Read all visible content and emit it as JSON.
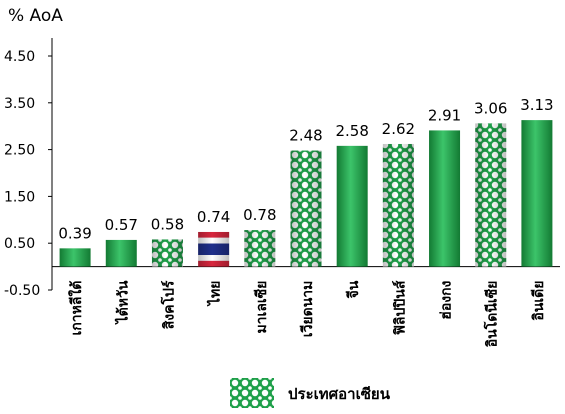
{
  "chart_data": {
    "type": "bar",
    "unit_label": "% AoA",
    "categories": [
      "เกาหลีใต้",
      "ไต้หวัน",
      "สิงคโปร์",
      "ไทย",
      "มาเลเซีย",
      "เวียดนาม",
      "จีน",
      "ฟิลิปปินส์",
      "ฮ่องกง",
      "อินโดนีเซีย",
      "อินเดีย"
    ],
    "values": [
      0.39,
      0.57,
      0.58,
      0.74,
      0.78,
      2.48,
      2.58,
      2.62,
      2.91,
      3.06,
      3.13
    ],
    "value_labels": [
      "0.39",
      "0.57",
      "0.58",
      "0.74",
      "0.78",
      "2.48",
      "2.58",
      "2.62",
      "2.91",
      "3.06",
      "3.13"
    ],
    "bar_styles": [
      "solid",
      "solid",
      "asean",
      "thai-flag",
      "asean",
      "asean",
      "solid",
      "asean",
      "solid",
      "asean",
      "solid"
    ],
    "yticks": [
      "4.50",
      "3.50",
      "2.50",
      "1.50",
      "0.50",
      "-0.50"
    ],
    "ylim": [
      -0.5,
      4.5
    ],
    "grid": false,
    "legend": {
      "label": "ประเทศอาเซียน",
      "placement": "bottom"
    },
    "colors": {
      "bar": "#1fa04a",
      "bar_light": "#5fd07f",
      "bar_dark": "#137a33",
      "pattern_bg": "#ffffff",
      "axis": "#000000"
    }
  }
}
